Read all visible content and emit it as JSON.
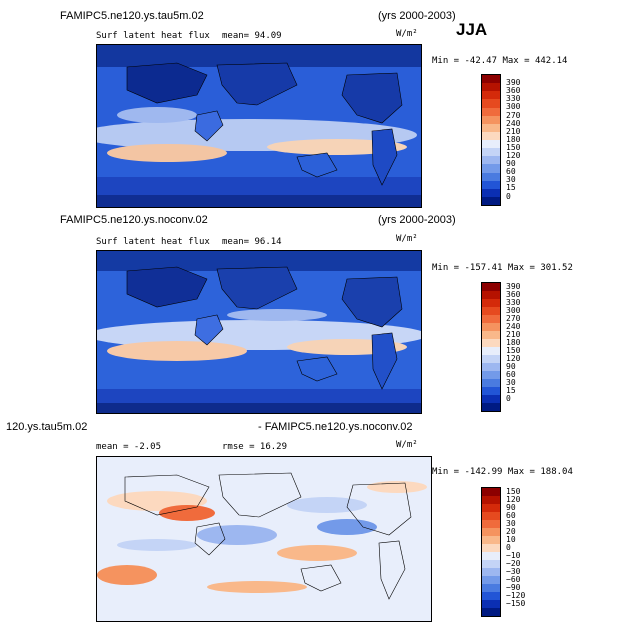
{
  "season": "JJA",
  "panels": [
    {
      "case_name": "FAMIPC5.ne120.ys.tau5m.02",
      "years": "(yrs 2000-2003)",
      "field_label": "Surf latent heat flux",
      "stat_label": "mean=  94.09",
      "units": "W/m²",
      "minmax": "Min = -42.47  Max = 442.14",
      "colorbar_labels": [
        "390",
        "360",
        "330",
        "300",
        "270",
        "240",
        "210",
        "180",
        "150",
        "120",
        "90",
        "60",
        "30",
        "15",
        "0"
      ],
      "colorbar_colors": [
        "#8c0000",
        "#b51200",
        "#d42a0a",
        "#e64a1f",
        "#f06b3c",
        "#f5935f",
        "#f9b88a",
        "#fcd9bf",
        "#e8eefb",
        "#c4d4f6",
        "#9db7f0",
        "#739ae9",
        "#4a7be0",
        "#2255d6",
        "#0b2fb3",
        "#001a82"
      ]
    },
    {
      "case_name": "FAMIPC5.ne120.ys.noconv.02",
      "years": "(yrs 2000-2003)",
      "field_label": "Surf latent heat flux",
      "stat_label": "mean=  96.14",
      "units": "W/m²",
      "minmax": "Min = -157.41  Max = 301.52",
      "colorbar_labels": [
        "390",
        "360",
        "330",
        "300",
        "270",
        "240",
        "210",
        "180",
        "150",
        "120",
        "90",
        "60",
        "30",
        "15",
        "0"
      ],
      "colorbar_colors": [
        "#8c0000",
        "#b51200",
        "#d42a0a",
        "#e64a1f",
        "#f06b3c",
        "#f5935f",
        "#f9b88a",
        "#fcd9bf",
        "#e8eefb",
        "#c4d4f6",
        "#9db7f0",
        "#739ae9",
        "#4a7be0",
        "#2255d6",
        "#0b2fb3",
        "#001a82"
      ]
    },
    {
      "case_left": "120.ys.tau5m.02",
      "case_right": "- FAMIPC5.ne120.ys.noconv.02",
      "stat_label": "mean =  -2.05",
      "rmse_label": "rmse =  16.29",
      "units": "W/m²",
      "minmax": "Min = -142.99  Max = 188.04",
      "colorbar_labels": [
        "150",
        "120",
        "90",
        "60",
        "30",
        "20",
        "10",
        "0",
        "−10",
        "−20",
        "−30",
        "−60",
        "−90",
        "−120",
        "−150"
      ],
      "colorbar_colors": [
        "#8c0000",
        "#b51200",
        "#d42a0a",
        "#e64a1f",
        "#f06b3c",
        "#f5935f",
        "#f9b88a",
        "#fcd9bf",
        "#e8eefb",
        "#c4d4f6",
        "#9db7f0",
        "#739ae9",
        "#4a7be0",
        "#2255d6",
        "#0b2fb3",
        "#001a82"
      ]
    }
  ]
}
